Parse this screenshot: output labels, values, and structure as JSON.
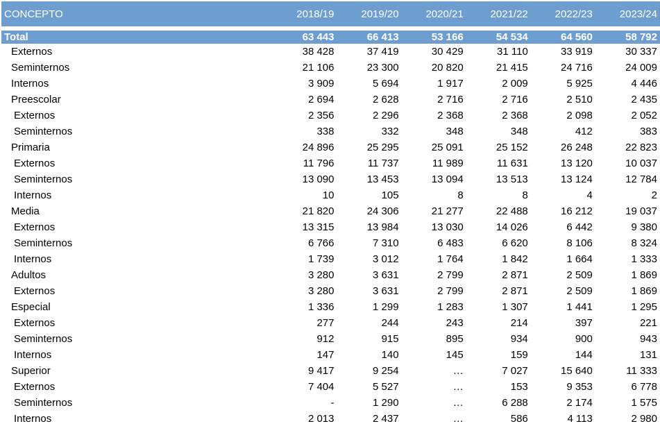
{
  "header": {
    "concept": "CONCEPTO",
    "years": [
      "2018/19",
      "2019/20",
      "2020/21",
      "2021/22",
      "2022/23",
      "2023/24"
    ]
  },
  "total": {
    "label": "Total",
    "values": [
      "63 443",
      "66 413",
      "53 166",
      "54 534",
      "64 560",
      "58 792"
    ]
  },
  "rows": [
    {
      "label": "Externos",
      "level": 1,
      "values": [
        "38 428",
        "37 419",
        "30 429",
        "31 110",
        "33 919",
        "30 337"
      ]
    },
    {
      "label": "Seminternos",
      "level": 1,
      "values": [
        "21 106",
        "23 300",
        "20 820",
        "21 415",
        "24 716",
        "24 009"
      ]
    },
    {
      "label": "Internos",
      "level": 1,
      "values": [
        "3 909",
        "5 694",
        "1 917",
        "2 009",
        "5 925",
        "4 446"
      ]
    },
    {
      "label": "Preescolar",
      "level": 1,
      "values": [
        "2 694",
        "2 628",
        "2 716",
        "2 716",
        "2 510",
        "2 435"
      ]
    },
    {
      "label": "Externos",
      "level": 2,
      "values": [
        "2 356",
        "2 296",
        "2 368",
        "2 368",
        "2 098",
        "2 052"
      ]
    },
    {
      "label": "Seminternos",
      "level": 2,
      "values": [
        "338",
        "332",
        "348",
        "348",
        "412",
        "383"
      ]
    },
    {
      "label": "Primaria",
      "level": 1,
      "values": [
        "24 896",
        "25 295",
        "25 091",
        "25 152",
        "26 248",
        "22 823"
      ]
    },
    {
      "label": "Externos",
      "level": 2,
      "values": [
        "11 796",
        "11 737",
        "11 989",
        "11 631",
        "13 120",
        "10 037"
      ]
    },
    {
      "label": "Seminternos",
      "level": 2,
      "values": [
        "13 090",
        "13 453",
        "13 094",
        "13 513",
        "13 124",
        "12 784"
      ]
    },
    {
      "label": "Internos",
      "level": 2,
      "values": [
        "10",
        "105",
        "8",
        "8",
        "4",
        "2"
      ]
    },
    {
      "label": "Media",
      "level": 1,
      "values": [
        "21 820",
        "24 306",
        "21 277",
        "22 488",
        "16 212",
        "19 037"
      ]
    },
    {
      "label": "Externos",
      "level": 2,
      "values": [
        "13 315",
        "13 984",
        "13 030",
        "14 026",
        "6 442",
        "9 380"
      ]
    },
    {
      "label": "Seminternos",
      "level": 2,
      "values": [
        "6 766",
        "7 310",
        "6 483",
        "6 620",
        "8 106",
        "8 324"
      ]
    },
    {
      "label": "Internos",
      "level": 2,
      "values": [
        "1 739",
        "3 012",
        "1 764",
        "1 842",
        "1 664",
        "1 333"
      ]
    },
    {
      "label": "Adultos",
      "level": 1,
      "values": [
        "3 280",
        "3 631",
        "2 799",
        "2 871",
        "2 509",
        "1 869"
      ]
    },
    {
      "label": "Externos",
      "level": 2,
      "values": [
        "3 280",
        "3 631",
        "2 799",
        "2 871",
        "2 509",
        "1 869"
      ]
    },
    {
      "label": "Especial",
      "level": 1,
      "values": [
        "1 336",
        "1 299",
        "1 283",
        "1 307",
        "1 441",
        "1 295"
      ]
    },
    {
      "label": "Externos",
      "level": 2,
      "values": [
        "277",
        "244",
        "243",
        "214",
        "397",
        "221"
      ]
    },
    {
      "label": "Seminternos",
      "level": 2,
      "values": [
        "912",
        "915",
        "895",
        "934",
        "900",
        "943"
      ]
    },
    {
      "label": "Internos",
      "level": 2,
      "values": [
        "147",
        "140",
        "145",
        "159",
        "144",
        "131"
      ]
    },
    {
      "label": "Superior",
      "level": 1,
      "values": [
        "9 417",
        "9 254",
        "…",
        "7 027",
        "15 640",
        "11 333"
      ]
    },
    {
      "label": "Externos",
      "level": 2,
      "values": [
        "7 404",
        "5 527",
        "…",
        "153",
        "9 353",
        "6 778"
      ]
    },
    {
      "label": "Seminternos",
      "level": 2,
      "values": [
        "-",
        "1 290",
        "…",
        "6 288",
        "2 174",
        "1 575"
      ]
    },
    {
      "label": "Internos",
      "level": 2,
      "values": [
        "2 013",
        "2 437",
        "…",
        "586",
        "4 113",
        "2 980"
      ]
    }
  ]
}
